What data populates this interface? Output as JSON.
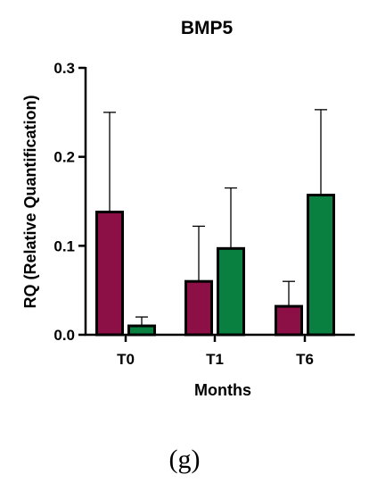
{
  "chart_data": {
    "type": "bar",
    "title": "BMP5",
    "xlabel": "Months",
    "ylabel": "RQ (Relative Quantification)",
    "categories": [
      "T0",
      "T1",
      "T6"
    ],
    "ylim": [
      0,
      0.3
    ],
    "yticks": [
      0.0,
      0.1,
      0.2,
      0.3
    ],
    "ytick_labels": [
      "0.0",
      "0.1",
      "0.2",
      "0.3"
    ],
    "grid": false,
    "legend": "none",
    "series": [
      {
        "values": [
          0.138,
          0.06,
          0.032
        ],
        "error": [
          0.112,
          0.062,
          0.028
        ],
        "color": "#8c0f46"
      },
      {
        "values": [
          0.01,
          0.097,
          0.157
        ],
        "error": [
          0.01,
          0.068,
          0.096
        ],
        "color": "#0a8040"
      }
    ]
  },
  "panel_label": "(g)"
}
